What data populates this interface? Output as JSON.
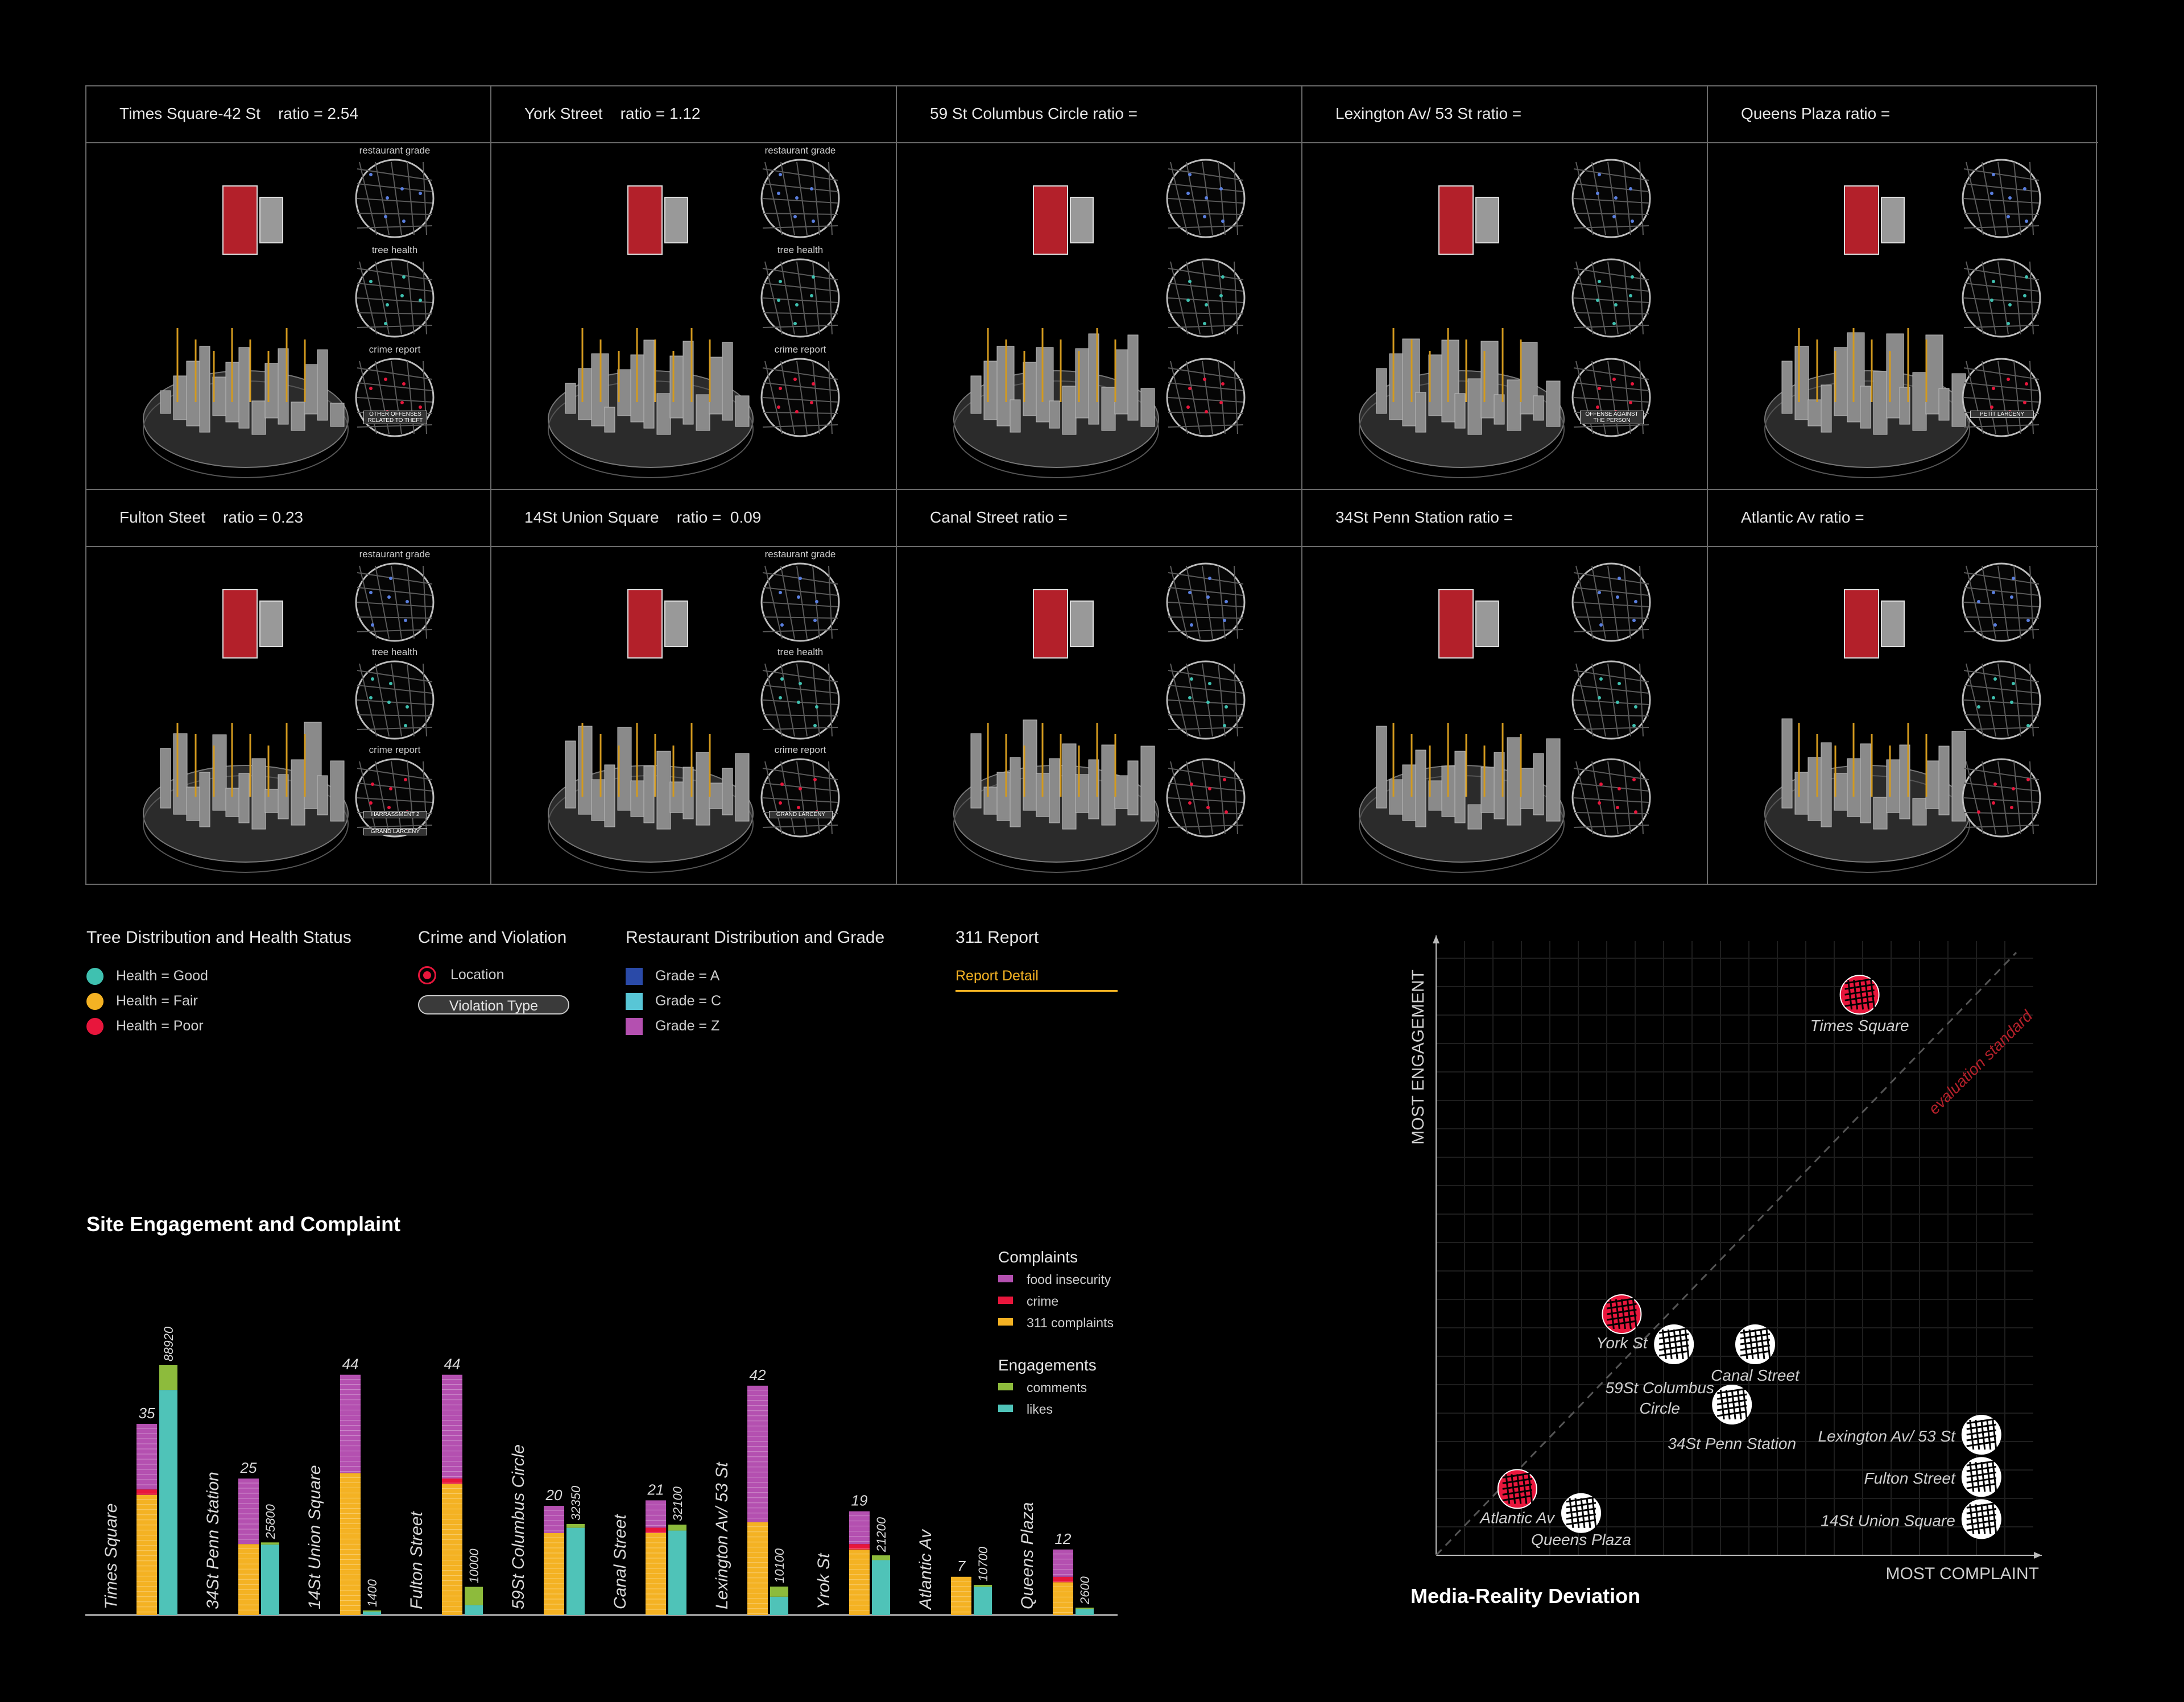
{
  "panels": [
    {
      "title": "Times Square-42 St    ratio = 2.54",
      "labels": [
        "restaurant grade",
        "tree health",
        "crime report"
      ],
      "crime_tags": [
        "OTHER OFFENSES RELATED TO THEFT"
      ]
    },
    {
      "title": "York Street    ratio = 1.12",
      "labels": [
        "restaurant grade",
        "tree health",
        "crime report"
      ],
      "crime_tags": []
    },
    {
      "title": "59 St Columbus Circle ratio =",
      "labels": [
        "",
        "",
        ""
      ],
      "crime_tags": []
    },
    {
      "title": "Lexington Av/ 53 St ratio =",
      "labels": [
        "",
        "",
        ""
      ],
      "crime_tags": [
        "OFFENSE AGAINST THE PERSON"
      ]
    },
    {
      "title": "Queens Plaza ratio =",
      "labels": [
        "",
        "",
        ""
      ],
      "crime_tags": [
        "PETIT LARCENY"
      ]
    },
    {
      "title": "Fulton Steet    ratio = 0.23",
      "labels": [
        "restaurant grade",
        "tree health",
        "crime report"
      ],
      "crime_tags": [
        "HARRASSMENT 2",
        "GRAND LARCENY"
      ]
    },
    {
      "title": "14St Union Square    ratio =  0.09",
      "labels": [
        "restaurant grade",
        "tree health",
        "crime report"
      ],
      "crime_tags": [
        "GRAND LARCENY"
      ]
    },
    {
      "title": "Canal Street ratio =",
      "labels": [
        "",
        "",
        ""
      ],
      "crime_tags": []
    },
    {
      "title": "34St Penn Station ratio =",
      "labels": [
        "",
        "",
        ""
      ],
      "crime_tags": []
    },
    {
      "title": "Atlantic Av ratio =",
      "labels": [
        "",
        "",
        ""
      ],
      "crime_tags": []
    }
  ],
  "legend": {
    "tree": {
      "title": "Tree Distribution and Health Status",
      "items": [
        {
          "label": "Health = Good",
          "color": "#3fc1b0"
        },
        {
          "label": "Health = Fair",
          "color": "#f4b223"
        },
        {
          "label": "Health = Poor",
          "color": "#e8163c"
        }
      ]
    },
    "crime": {
      "title": "Crime and Violation",
      "location": "Location",
      "violation": "Violation Type"
    },
    "restaurant": {
      "title": "Restaurant Distribution and Grade",
      "items": [
        {
          "label": "Grade = A",
          "color": "#2a4aa8"
        },
        {
          "label": "Grade = C",
          "color": "#58c6d6"
        },
        {
          "label": "Grade = Z",
          "color": "#b450b0"
        }
      ]
    },
    "report": {
      "title": "311 Report",
      "detail": "Report Detail"
    }
  },
  "bar_chart_title": "Site Engagement and Complaint",
  "scatter_title": "Media-Reality Deviation",
  "chart_data": [
    {
      "type": "bar",
      "title": "Site Engagement and Complaint",
      "categories": [
        "Times Square",
        "34St Penn Station",
        "14St Union Square",
        "Fulton Street",
        "59St Columbus Circle",
        "Canal Street",
        "Lexington Av/ 53 St",
        "Yrok St",
        "Atlantic Av",
        "Queens Plaza"
      ],
      "complaint_totals": [
        35,
        25,
        44,
        44,
        20,
        21,
        42,
        19,
        7,
        12
      ],
      "engagement_totals": [
        88920,
        25800,
        1400,
        10000,
        32350,
        32100,
        10100,
        21200,
        10700,
        2600
      ],
      "series": [
        {
          "name": "311 complaints",
          "group": "Complaints",
          "color": "#f4b223",
          "values": [
            22,
            13,
            26,
            24,
            15,
            15,
            17,
            12,
            7,
            6
          ]
        },
        {
          "name": "crime",
          "group": "Complaints",
          "color": "#e8163c",
          "values": [
            1,
            0,
            0,
            1,
            0,
            1,
            0,
            1,
            0,
            1
          ]
        },
        {
          "name": "food insecurity",
          "group": "Complaints",
          "color": "#b450b0",
          "values": [
            12,
            12,
            18,
            19,
            5,
            5,
            25,
            6,
            0,
            5
          ]
        },
        {
          "name": "likes",
          "group": "Engagements",
          "color": "#4fc3b8",
          "values": [
            80000,
            25000,
            1200,
            3500,
            31000,
            30000,
            6500,
            19500,
            10000,
            2200
          ]
        },
        {
          "name": "comments",
          "group": "Engagements",
          "color": "#8dbb3c",
          "values": [
            8920,
            800,
            200,
            6500,
            1350,
            2100,
            3600,
            1700,
            700,
            400
          ]
        }
      ],
      "legend": {
        "complaints_title": "Complaints",
        "engagements_title": "Engagements"
      }
    },
    {
      "type": "scatter",
      "title": "Media-Reality Deviation",
      "xlabel": "MOST COMPLAINT",
      "ylabel": "MOST ENGAGEMENT",
      "diagonal_label": "evaluation standard",
      "xlim": [
        0,
        100
      ],
      "ylim": [
        0,
        100
      ],
      "grid": true,
      "points": [
        {
          "label": "Times Square",
          "x": 73,
          "y": 93,
          "color": "#e8163c"
        },
        {
          "label": "York St",
          "x": 32,
          "y": 40,
          "color": "#e8163c"
        },
        {
          "label": "59St Columbus Circle",
          "x": 41,
          "y": 35,
          "color": "#ffffff"
        },
        {
          "label": "Canal Street",
          "x": 55,
          "y": 35,
          "color": "#ffffff"
        },
        {
          "label": "34St Penn Station",
          "x": 51,
          "y": 25,
          "color": "#ffffff"
        },
        {
          "label": "Lexington Av/ 53 St",
          "x": 94,
          "y": 20,
          "color": "#ffffff"
        },
        {
          "label": "Fulton Street",
          "x": 94,
          "y": 13,
          "color": "#ffffff"
        },
        {
          "label": "14St Union Square",
          "x": 94,
          "y": 6,
          "color": "#ffffff"
        },
        {
          "label": "Atlantic Av",
          "x": 14,
          "y": 11,
          "color": "#e8163c"
        },
        {
          "label": "Queens Plaza",
          "x": 25,
          "y": 7,
          "color": "#ffffff"
        }
      ]
    }
  ]
}
